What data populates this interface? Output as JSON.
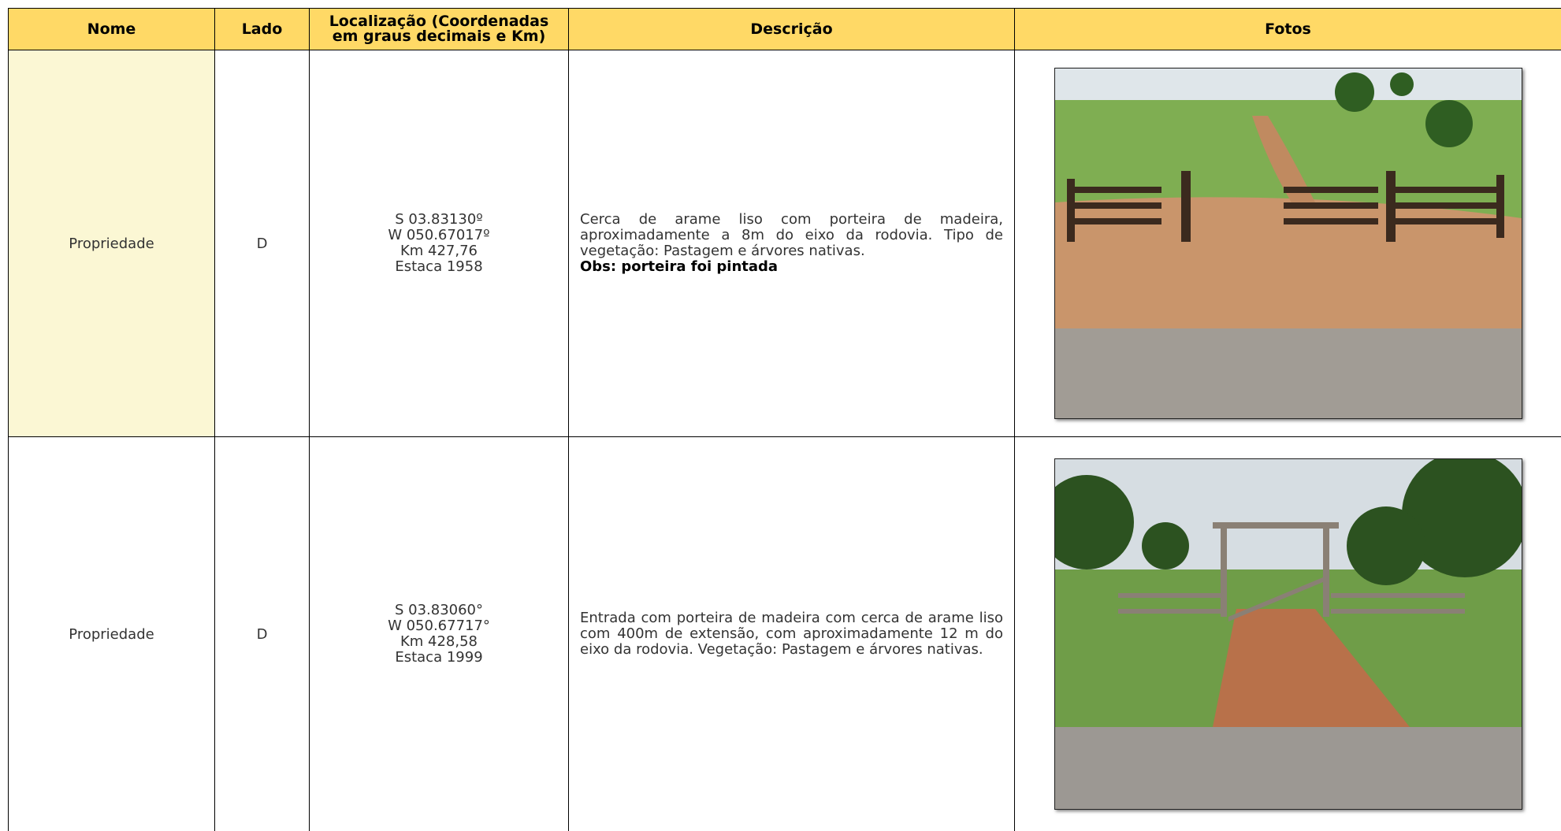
{
  "table": {
    "headers": [
      "Nome",
      "Lado",
      "Localização (Coordenadas em graus decimais e Km)",
      "Descrição",
      "Fotos"
    ],
    "rows": [
      {
        "nome": "Propriedade",
        "lado": "D",
        "localizacao": [
          "S 03.83130º",
          "W 050.67017º",
          "Km 427,76",
          "Estaca 1958"
        ],
        "descricao": "Cerca de arame liso com porteira de madeira, aproximadamente a 8m do eixo da rodovia. Tipo de vegetação: Pastagem e árvores nativas.",
        "obs": "Obs: porteira foi pintada"
      },
      {
        "nome": "Propriedade",
        "lado": "D",
        "localizacao": [
          "S 03.83060°",
          "W 050.67717°",
          "Km 428,58",
          "Estaca 1999"
        ],
        "descricao": "Entrada com porteira de madeira com cerca de arame liso com 400m de extensão, com aproximadamente 12 m do eixo da rodovia. Vegetação: Pastagem e árvores nativas."
      }
    ]
  }
}
